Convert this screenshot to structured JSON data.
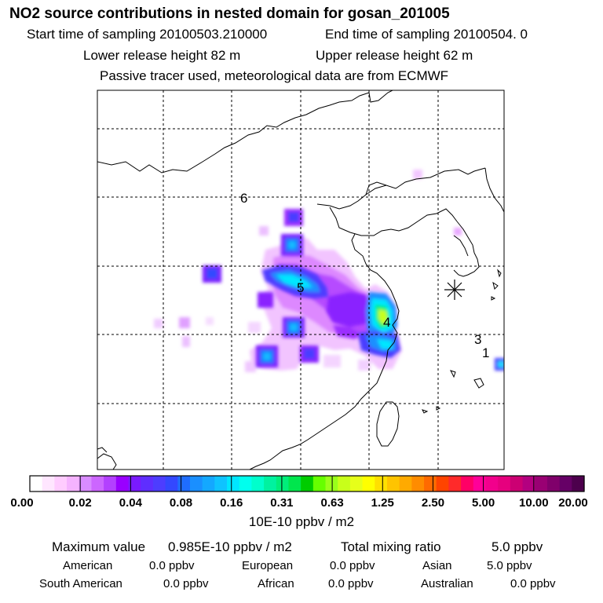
{
  "header": {
    "title": "NO2 source contributions in nested domain for gosan_201005",
    "start_sampling": "Start time of sampling 20100503.210000",
    "end_sampling": "End time of sampling 20100504.     0",
    "lower_release": "Lower release height   82 m",
    "upper_release": "Upper release height   62 m",
    "tracer_note": "Passive tracer used, meteorological data are from ECMWF"
  },
  "map": {
    "markers": [
      "1",
      "3",
      "4",
      "5",
      "6"
    ],
    "receptor": "gosan"
  },
  "colorbar": {
    "labels": [
      "0.00",
      "0.02",
      "0.04",
      "0.08",
      "0.16",
      "0.31",
      "0.63",
      "1.25",
      "2.50",
      "5.00",
      "10.00",
      "20.00"
    ],
    "colors": [
      "#ffffff",
      "#ffe6ff",
      "#ffccff",
      "#f5b3ff",
      "#d98cff",
      "#cc66ff",
      "#b340ff",
      "#9900ff",
      "#7a1aff",
      "#5f2eff",
      "#4d3dff",
      "#3348ff",
      "#1f6dff",
      "#1a8fff",
      "#14a8ff",
      "#0fc3ff",
      "#00e6ff",
      "#00ffee",
      "#00ffcc",
      "#00f2a0",
      "#00ee7a",
      "#00e64d",
      "#00cc00",
      "#66ff00",
      "#9aff1a",
      "#c8ff1a",
      "#e6ff1a",
      "#ffff00",
      "#ffe000",
      "#ffc400",
      "#ffaa00",
      "#ff8c00",
      "#ff6a00",
      "#ff4400",
      "#ff2a2a",
      "#ff0066",
      "#ff0099",
      "#f2008c",
      "#e6007e",
      "#cc0073",
      "#b30080",
      "#990073",
      "#80006b",
      "#660066",
      "#4d004d"
    ],
    "units": "10E-10 ppbv / m2"
  },
  "summary": {
    "max_label": "Maximum value",
    "max_value": "0.985E-10 ppbv / m2",
    "total_label": "Total mixing ratio",
    "total_value": "5.0 ppbv",
    "regions": [
      {
        "name": "American",
        "value": "0.0 ppbv"
      },
      {
        "name": "European",
        "value": "0.0 ppbv"
      },
      {
        "name": "Asian",
        "value": "5.0 ppbv"
      },
      {
        "name": "South American",
        "value": "0.0 ppbv"
      },
      {
        "name": "African",
        "value": "0.0 ppbv"
      },
      {
        "name": "Australian",
        "value": "0.0 ppbv"
      }
    ]
  }
}
